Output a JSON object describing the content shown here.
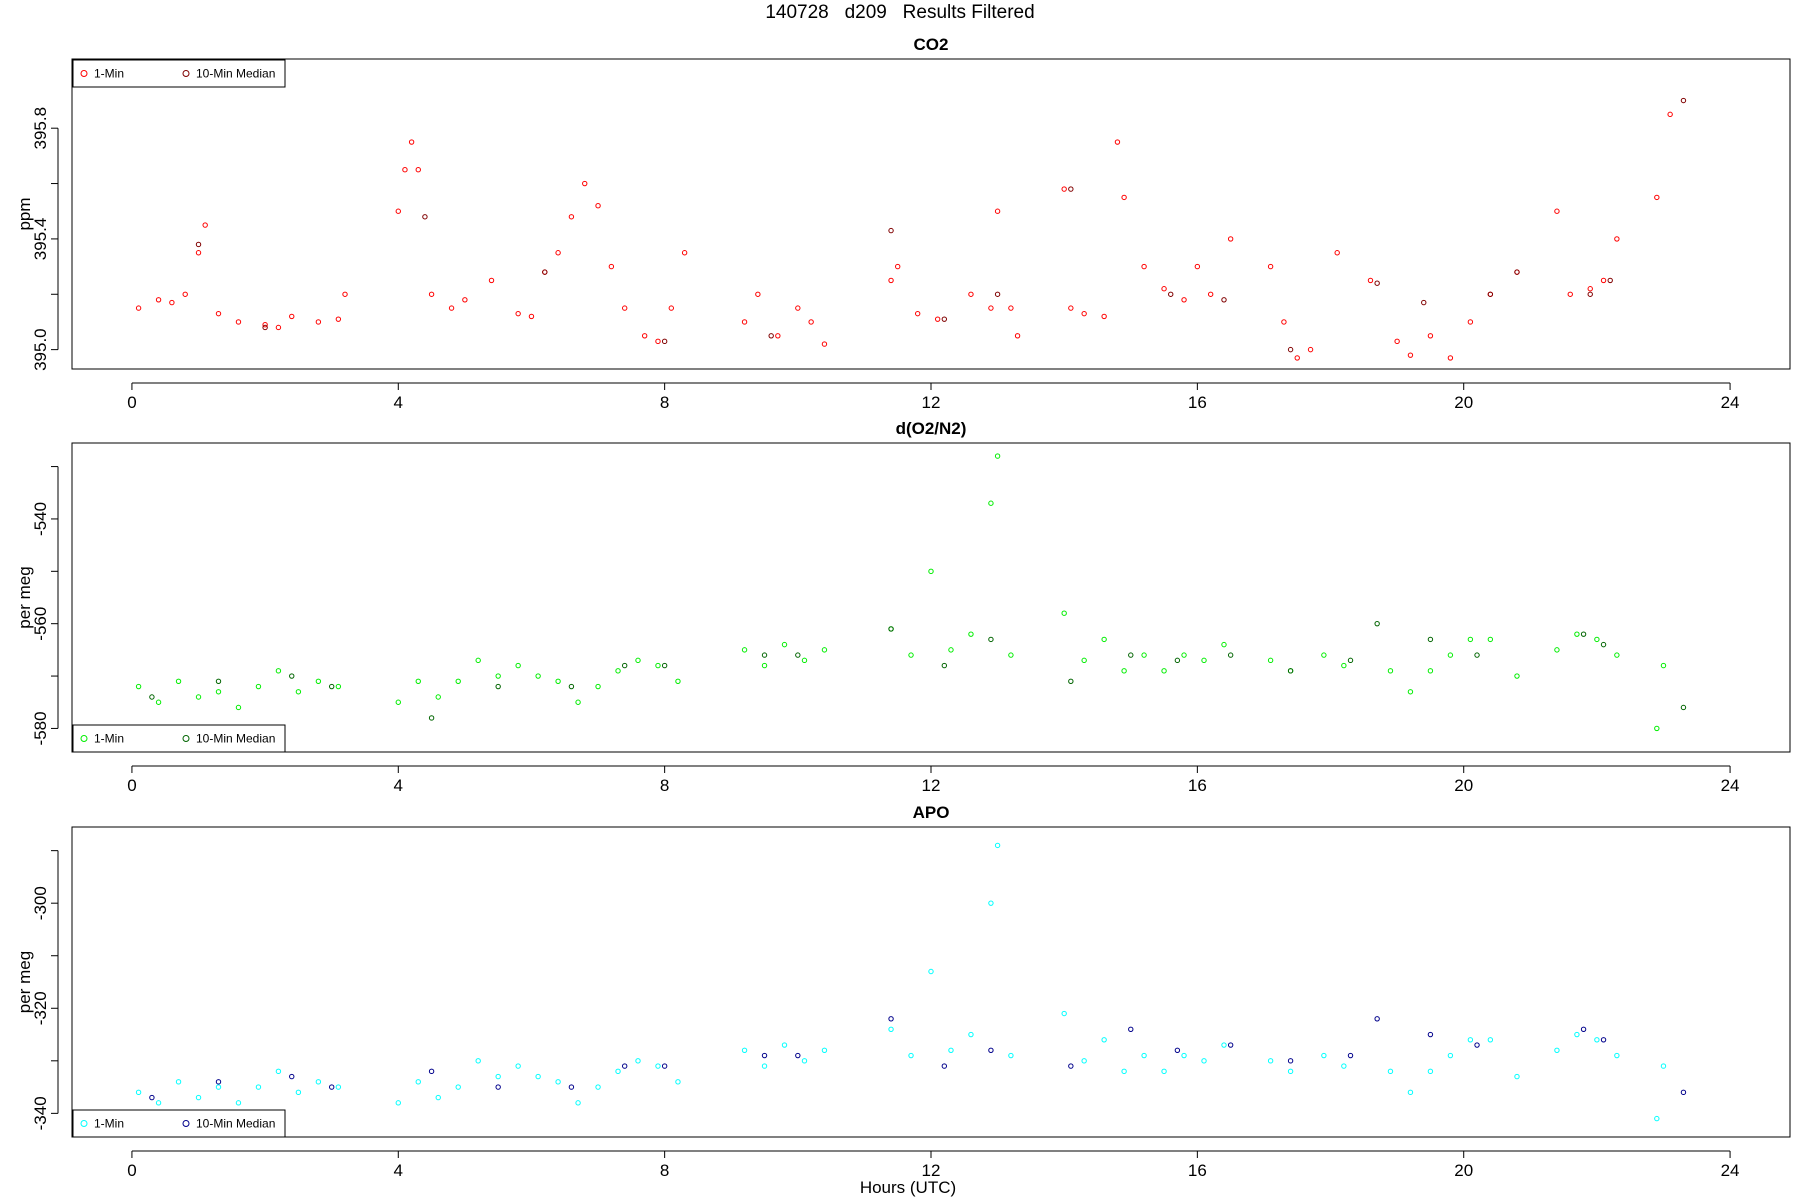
{
  "page": {
    "title": "140728   d209   Results Filtered"
  },
  "chart_data": [
    {
      "type": "scatter",
      "title": "CO2",
      "ylabel": "ppm",
      "xlabel": "",
      "xlim": [
        -0.9,
        24.9
      ],
      "ylim": [
        394.93,
        396.05
      ],
      "xticks": [
        0,
        4,
        8,
        12,
        16,
        20,
        24
      ],
      "yticks": [
        395.0,
        395.2,
        395.4,
        395.6,
        395.8
      ],
      "ytick_labels": [
        "395.0",
        "395.4",
        "395.8"
      ],
      "ytick_label_values": [
        395.0,
        395.4,
        395.8
      ],
      "legend": {
        "position": "top-left",
        "entries": [
          "1-Min",
          "10-Min Median"
        ]
      },
      "series": [
        {
          "name": "1-Min",
          "color": "#ff0000",
          "x": [
            0.1,
            0.4,
            0.6,
            0.8,
            1.0,
            1.1,
            1.3,
            1.6,
            2.0,
            2.2,
            2.4,
            2.8,
            3.1,
            3.2,
            4.0,
            4.1,
            4.2,
            4.3,
            4.5,
            4.8,
            5.0,
            5.4,
            5.8,
            6.0,
            6.2,
            6.4,
            6.6,
            6.8,
            7.0,
            7.2,
            7.4,
            7.7,
            7.9,
            8.1,
            8.3,
            9.2,
            9.4,
            9.7,
            10.0,
            10.2,
            10.4,
            11.4,
            11.5,
            11.8,
            12.1,
            12.6,
            12.9,
            13.0,
            13.2,
            13.3,
            14.0,
            14.1,
            14.3,
            14.6,
            14.8,
            14.9,
            15.2,
            15.5,
            15.8,
            16.0,
            16.2,
            16.5,
            17.1,
            17.3,
            17.5,
            17.7,
            18.1,
            18.6,
            19.0,
            19.2,
            19.5,
            19.8,
            20.1,
            20.4,
            20.8,
            21.4,
            21.6,
            21.9,
            22.1,
            22.3,
            22.9,
            23.1
          ],
          "y": [
            395.15,
            395.18,
            395.17,
            395.2,
            395.35,
            395.45,
            395.13,
            395.1,
            395.09,
            395.08,
            395.12,
            395.1,
            395.11,
            395.2,
            395.5,
            395.65,
            395.75,
            395.65,
            395.2,
            395.15,
            395.18,
            395.25,
            395.13,
            395.12,
            395.28,
            395.35,
            395.48,
            395.6,
            395.52,
            395.3,
            395.15,
            395.05,
            395.03,
            395.15,
            395.35,
            395.1,
            395.2,
            395.05,
            395.15,
            395.1,
            395.02,
            395.25,
            395.3,
            395.13,
            395.11,
            395.2,
            395.15,
            395.5,
            395.15,
            395.05,
            395.58,
            395.15,
            395.13,
            395.12,
            395.75,
            395.55,
            395.3,
            395.22,
            395.18,
            395.3,
            395.2,
            395.4,
            395.3,
            395.1,
            394.97,
            395.0,
            395.35,
            395.25,
            395.03,
            394.98,
            395.05,
            394.97,
            395.1,
            395.2,
            395.28,
            395.5,
            395.2,
            395.22,
            395.25,
            395.4,
            395.55,
            395.85
          ],
          "visible_range": "394.95 to 396.0"
        },
        {
          "name": "10-Min Median",
          "color": "#800000",
          "x": [
            1.0,
            2.0,
            4.4,
            6.2,
            8.0,
            9.6,
            11.4,
            12.2,
            13.0,
            14.1,
            15.6,
            16.4,
            17.4,
            18.7,
            19.4,
            20.4,
            20.8,
            21.9,
            22.2,
            23.3
          ],
          "y": [
            395.38,
            395.08,
            395.48,
            395.28,
            395.03,
            395.05,
            395.43,
            395.11,
            395.2,
            395.58,
            395.2,
            395.18,
            395.0,
            395.24,
            395.17,
            395.2,
            395.28,
            395.2,
            395.25,
            395.9
          ]
        }
      ]
    },
    {
      "type": "scatter",
      "title": "d(O2/N2)",
      "ylabel": "per meg",
      "xlabel": "",
      "xlim": [
        -0.9,
        24.9
      ],
      "ylim": [
        -584.5,
        -525.5
      ],
      "xticks": [
        0,
        4,
        8,
        12,
        16,
        20,
        24
      ],
      "yticks": [
        -580,
        -570,
        -560,
        -550,
        -540,
        -530
      ],
      "ytick_labels": [
        "-580",
        "-560",
        "-540"
      ],
      "ytick_label_values": [
        -580,
        -560,
        -540
      ],
      "legend": {
        "position": "bottom-left",
        "entries": [
          "1-Min",
          "10-Min Median"
        ]
      },
      "series": [
        {
          "name": "1-Min",
          "color": "#00ee00",
          "x": [
            0.1,
            0.4,
            0.7,
            1.0,
            1.3,
            1.6,
            1.9,
            2.2,
            2.5,
            2.8,
            3.1,
            4.0,
            4.3,
            4.6,
            4.9,
            5.2,
            5.5,
            5.8,
            6.1,
            6.4,
            6.7,
            7.0,
            7.3,
            7.6,
            7.9,
            8.2,
            9.2,
            9.5,
            9.8,
            10.1,
            10.4,
            11.4,
            11.7,
            12.0,
            12.3,
            12.6,
            12.9,
            13.0,
            13.2,
            14.0,
            14.3,
            14.6,
            14.9,
            15.2,
            15.5,
            15.8,
            16.1,
            16.4,
            17.1,
            17.4,
            17.9,
            18.2,
            18.9,
            19.2,
            19.5,
            19.8,
            20.1,
            20.4,
            20.8,
            21.4,
            21.7,
            22.0,
            22.3,
            22.9,
            23.0
          ],
          "y": [
            -572,
            -575,
            -571,
            -574,
            -573,
            -576,
            -572,
            -569,
            -573,
            -571,
            -572,
            -575,
            -571,
            -574,
            -571,
            -567,
            -570,
            -568,
            -570,
            -571,
            -575,
            -572,
            -569,
            -567,
            -568,
            -571,
            -565,
            -568,
            -564,
            -567,
            -565,
            -561,
            -566,
            -550,
            -565,
            -562,
            -537,
            -528,
            -566,
            -558,
            -567,
            -563,
            -569,
            -566,
            -569,
            -566,
            -567,
            -564,
            -567,
            -569,
            -566,
            -568,
            -569,
            -573,
            -569,
            -566,
            -563,
            -563,
            -570,
            -565,
            -562,
            -563,
            -566,
            -580,
            -568
          ],
          "visible_range": "-582 to -528"
        },
        {
          "name": "10-Min Median",
          "color": "#006400",
          "x": [
            0.3,
            1.3,
            2.4,
            3.0,
            4.5,
            5.5,
            6.6,
            7.4,
            8.0,
            9.5,
            10.0,
            11.4,
            12.2,
            12.9,
            14.1,
            15.0,
            15.7,
            16.5,
            17.4,
            18.3,
            18.7,
            19.5,
            20.2,
            21.8,
            22.1,
            23.3
          ],
          "y": [
            -574,
            -571,
            -570,
            -572,
            -578,
            -572,
            -572,
            -568,
            -568,
            -566,
            -566,
            -561,
            -568,
            -563,
            -571,
            -566,
            -567,
            -566,
            -569,
            -567,
            -560,
            -563,
            -566,
            -562,
            -564,
            -576
          ]
        }
      ]
    },
    {
      "type": "scatter",
      "title": "APO",
      "ylabel": "per meg",
      "xlabel": "Hours (UTC)",
      "xlim": [
        -0.9,
        24.9
      ],
      "ylim": [
        -344.5,
        -285.5
      ],
      "xticks": [
        0,
        4,
        8,
        12,
        16,
        20,
        24
      ],
      "yticks": [
        -340,
        -330,
        -320,
        -310,
        -300,
        -290
      ],
      "ytick_labels": [
        "-340",
        "-320",
        "-300"
      ],
      "ytick_label_values": [
        -340,
        -320,
        -300
      ],
      "legend": {
        "position": "bottom-left",
        "entries": [
          "1-Min",
          "10-Min Median"
        ]
      },
      "series": [
        {
          "name": "1-Min",
          "color": "#00ffff",
          "x": [
            0.1,
            0.4,
            0.7,
            1.0,
            1.3,
            1.6,
            1.9,
            2.2,
            2.5,
            2.8,
            3.1,
            4.0,
            4.3,
            4.6,
            4.9,
            5.2,
            5.5,
            5.8,
            6.1,
            6.4,
            6.7,
            7.0,
            7.3,
            7.6,
            7.9,
            8.2,
            9.2,
            9.5,
            9.8,
            10.1,
            10.4,
            11.4,
            11.7,
            12.0,
            12.3,
            12.6,
            12.9,
            13.0,
            13.2,
            14.0,
            14.3,
            14.6,
            14.9,
            15.2,
            15.5,
            15.8,
            16.1,
            16.4,
            17.1,
            17.4,
            17.9,
            18.2,
            18.9,
            19.2,
            19.5,
            19.8,
            20.1,
            20.4,
            20.8,
            21.4,
            21.7,
            22.0,
            22.3,
            22.9,
            23.0
          ],
          "y": [
            -336,
            -338,
            -334,
            -337,
            -335,
            -338,
            -335,
            -332,
            -336,
            -334,
            -335,
            -338,
            -334,
            -337,
            -335,
            -330,
            -333,
            -331,
            -333,
            -334,
            -338,
            -335,
            -332,
            -330,
            -331,
            -334,
            -328,
            -331,
            -327,
            -330,
            -328,
            -324,
            -329,
            -313,
            -328,
            -325,
            -300,
            -289,
            -329,
            -321,
            -330,
            -326,
            -332,
            -329,
            -332,
            -329,
            -330,
            -327,
            -330,
            -332,
            -329,
            -331,
            -332,
            -336,
            -332,
            -329,
            -326,
            -326,
            -333,
            -328,
            -325,
            -326,
            -329,
            -341,
            -331
          ],
          "visible_range": "-344 to -289"
        },
        {
          "name": "10-Min Median",
          "color": "#00008b",
          "x": [
            0.3,
            1.3,
            2.4,
            3.0,
            4.5,
            5.5,
            6.6,
            7.4,
            8.0,
            9.5,
            10.0,
            11.4,
            12.2,
            12.9,
            14.1,
            15.0,
            15.7,
            16.5,
            17.4,
            18.3,
            18.7,
            19.5,
            20.2,
            21.8,
            22.1,
            23.3
          ],
          "y": [
            -337,
            -334,
            -333,
            -335,
            -332,
            -335,
            -335,
            -331,
            -331,
            -329,
            -329,
            -322,
            -331,
            -328,
            -331,
            -324,
            -328,
            -327,
            -330,
            -329,
            -322,
            -325,
            -327,
            -324,
            -326,
            -336
          ]
        }
      ]
    }
  ]
}
